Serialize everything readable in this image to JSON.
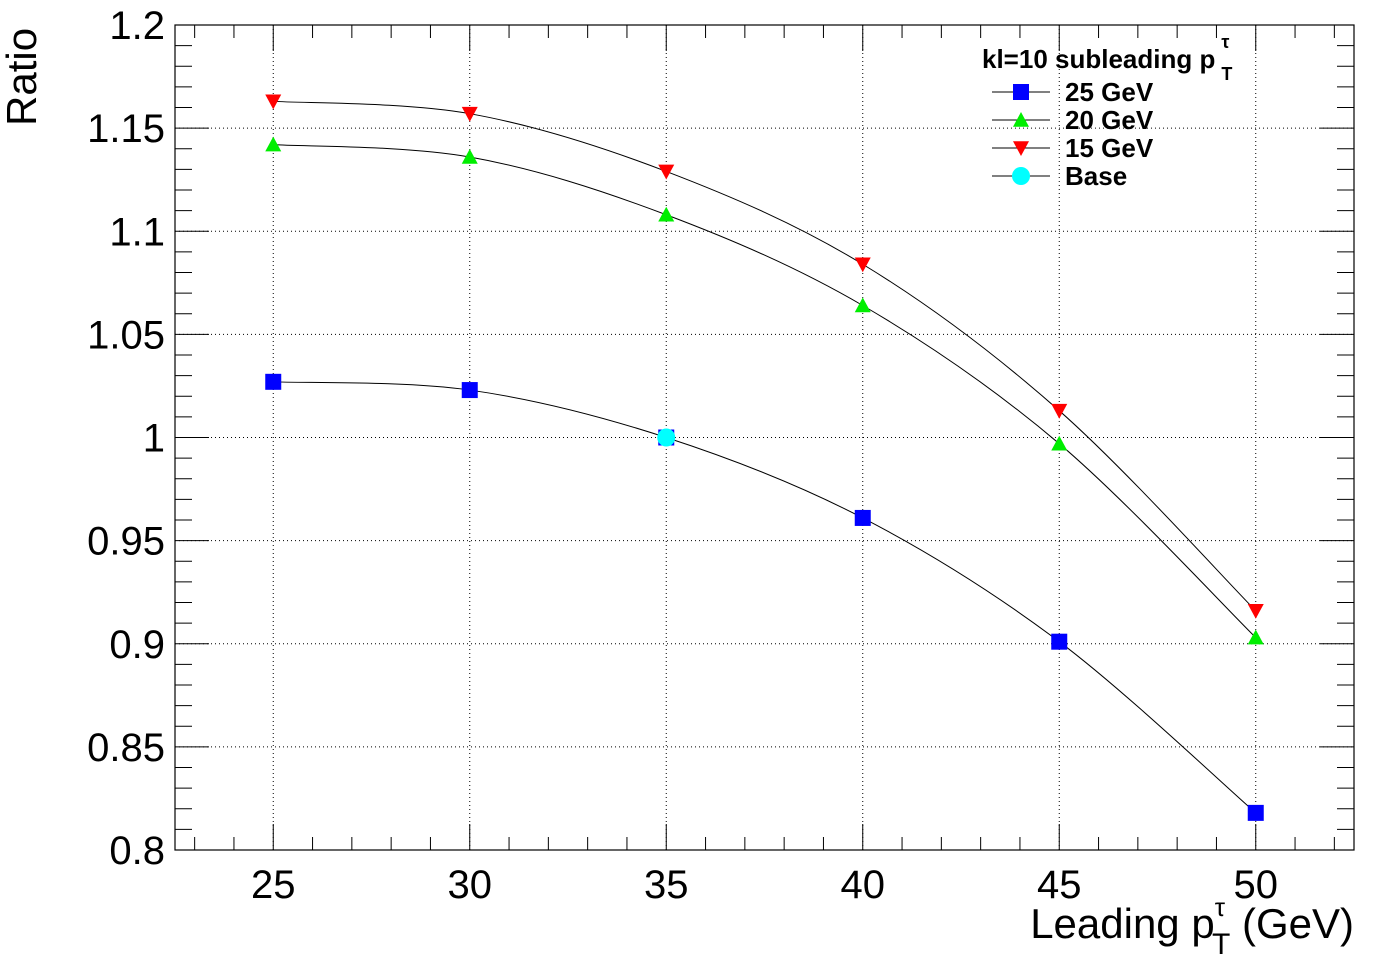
{
  "chart_data": {
    "type": "line",
    "title": "",
    "xlabel": {
      "prefix": "Leading p",
      "superscript": "τ",
      "subscript": "T",
      "suffix": " (GeV)"
    },
    "ylabel": "Ratio",
    "xlim": [
      22.5,
      52.5
    ],
    "ylim": [
      0.8,
      1.2
    ],
    "x_ticks": [
      25,
      30,
      35,
      40,
      45,
      50
    ],
    "x_tick_labels": [
      "25",
      "30",
      "35",
      "40",
      "45",
      "50"
    ],
    "y_ticks": [
      0.8,
      0.85,
      0.9,
      0.95,
      1.0,
      1.05,
      1.1,
      1.15,
      1.2
    ],
    "y_tick_labels": [
      "0.8",
      "0.85",
      "0.9",
      "0.95",
      "1",
      "1.05",
      "1.1",
      "1.15",
      "1.2"
    ],
    "grid": true,
    "grid_style": "dotted",
    "legend": {
      "placement": "top-right",
      "header": {
        "prefix": "kl=10 subleading p",
        "superscript": "τ",
        "subscript": "T"
      }
    },
    "series": [
      {
        "name": "25 GeV",
        "marker": "square",
        "color": "#0000ff",
        "x": [
          25,
          30,
          35,
          40,
          45,
          50
        ],
        "values": [
          1.027,
          1.023,
          1.0,
          0.961,
          0.901,
          0.818
        ]
      },
      {
        "name": "20 GeV",
        "marker": "triangle-up",
        "color": "#00ee00",
        "x": [
          25,
          30,
          35,
          40,
          45,
          50
        ],
        "values": [
          1.142,
          1.136,
          1.108,
          1.064,
          0.997,
          0.903
        ]
      },
      {
        "name": "15 GeV",
        "marker": "triangle-down",
        "color": "#ff0000",
        "x": [
          25,
          30,
          35,
          40,
          45,
          50
        ],
        "values": [
          1.163,
          1.157,
          1.129,
          1.084,
          1.013,
          0.916
        ]
      },
      {
        "name": "Base",
        "marker": "circle",
        "color": "#00ffff",
        "x": [
          35
        ],
        "values": [
          1.0
        ]
      }
    ]
  }
}
